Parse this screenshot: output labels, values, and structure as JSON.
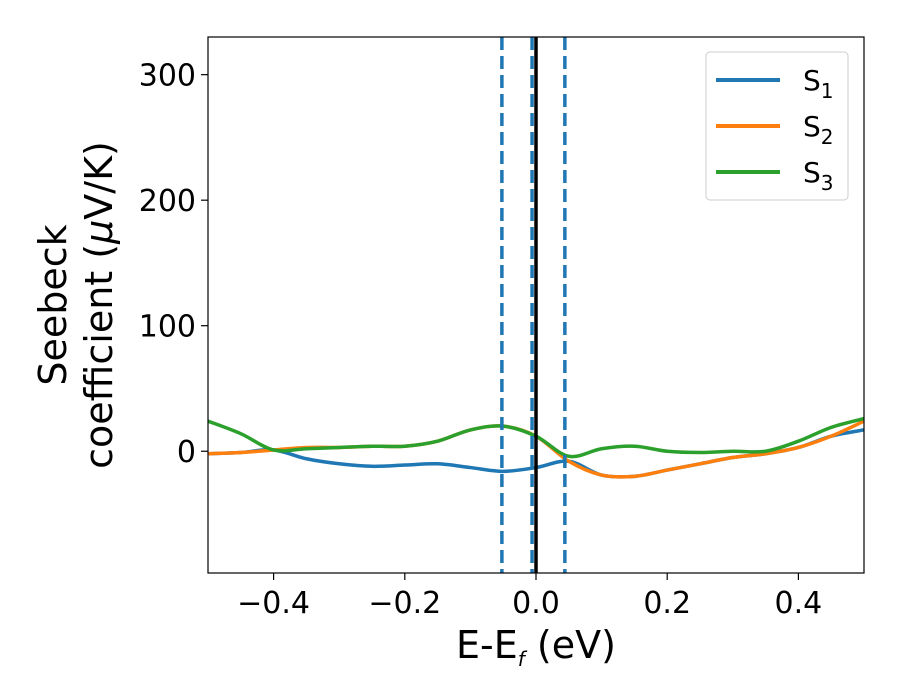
{
  "chart_data": {
    "type": "line",
    "title": "",
    "xlabel": {
      "main": "E-E",
      "sub": "f",
      "tail": " (eV)"
    },
    "ylabel": {
      "line1": "Seebeck",
      "line2_pre": "coefficient  (",
      "mu": "μ",
      "line2_post": "V/K)"
    },
    "xlim": [
      -0.5,
      0.5
    ],
    "ylim": [
      -97,
      330
    ],
    "xticks": [
      -0.4,
      -0.2,
      0.0,
      0.2,
      0.4
    ],
    "xtick_labels": [
      "−0.4",
      "−0.2",
      "0.0",
      "0.2",
      "0.4"
    ],
    "yticks": [
      0,
      100,
      200,
      300
    ],
    "ytick_labels": [
      "0",
      "100",
      "200",
      "300"
    ],
    "grid": false,
    "legend_position": "top-right",
    "series": [
      {
        "name": {
          "main": "S",
          "sub": "1"
        },
        "color": "#1f77b4",
        "x": [
          -0.5,
          -0.45,
          -0.4,
          -0.35,
          -0.3,
          -0.25,
          -0.2,
          -0.15,
          -0.1,
          -0.05,
          0.0,
          0.05,
          0.1,
          0.15,
          0.2,
          0.25,
          0.3,
          0.35,
          0.4,
          0.45,
          0.5
        ],
        "y": [
          -2,
          -1,
          1,
          -6,
          -10,
          -12,
          -11,
          -10,
          -13,
          -16,
          -13,
          -8,
          -19,
          -20,
          -15,
          -10,
          -5,
          -2,
          3,
          12,
          17
        ]
      },
      {
        "name": {
          "main": "S",
          "sub": "2"
        },
        "color": "#ff7f0e",
        "x": [
          -0.5,
          -0.45,
          -0.4,
          -0.35,
          -0.3,
          -0.25,
          -0.2,
          -0.15,
          -0.1,
          -0.05,
          0.0,
          0.05,
          0.1,
          0.15,
          0.2,
          0.25,
          0.3,
          0.35,
          0.4,
          0.45,
          0.5
        ],
        "y": [
          -2,
          -1,
          1,
          3,
          3,
          4,
          4,
          8,
          17,
          20,
          12,
          -8,
          -19,
          -20,
          -15,
          -10,
          -5,
          -2,
          3,
          12,
          24
        ]
      },
      {
        "name": {
          "main": "S",
          "sub": "3"
        },
        "color": "#2ca02c",
        "x": [
          -0.5,
          -0.45,
          -0.4,
          -0.35,
          -0.3,
          -0.25,
          -0.2,
          -0.15,
          -0.1,
          -0.05,
          0.0,
          0.05,
          0.1,
          0.15,
          0.2,
          0.25,
          0.3,
          0.35,
          0.4,
          0.45,
          0.5
        ],
        "y": [
          24,
          14,
          1,
          2,
          3,
          4,
          4,
          8,
          17,
          20,
          12,
          -4,
          2,
          4,
          0,
          -1,
          0,
          0,
          8,
          19,
          26
        ]
      }
    ],
    "vertical_lines": [
      {
        "x": -0.052,
        "style": "dashed",
        "color": "#1f77b4"
      },
      {
        "x": -0.006,
        "style": "dashed",
        "color": "#1f77b4"
      },
      {
        "x": 0.0,
        "style": "solid",
        "color": "#000000"
      },
      {
        "x": 0.044,
        "style": "dashed",
        "color": "#1f77b4"
      }
    ]
  }
}
